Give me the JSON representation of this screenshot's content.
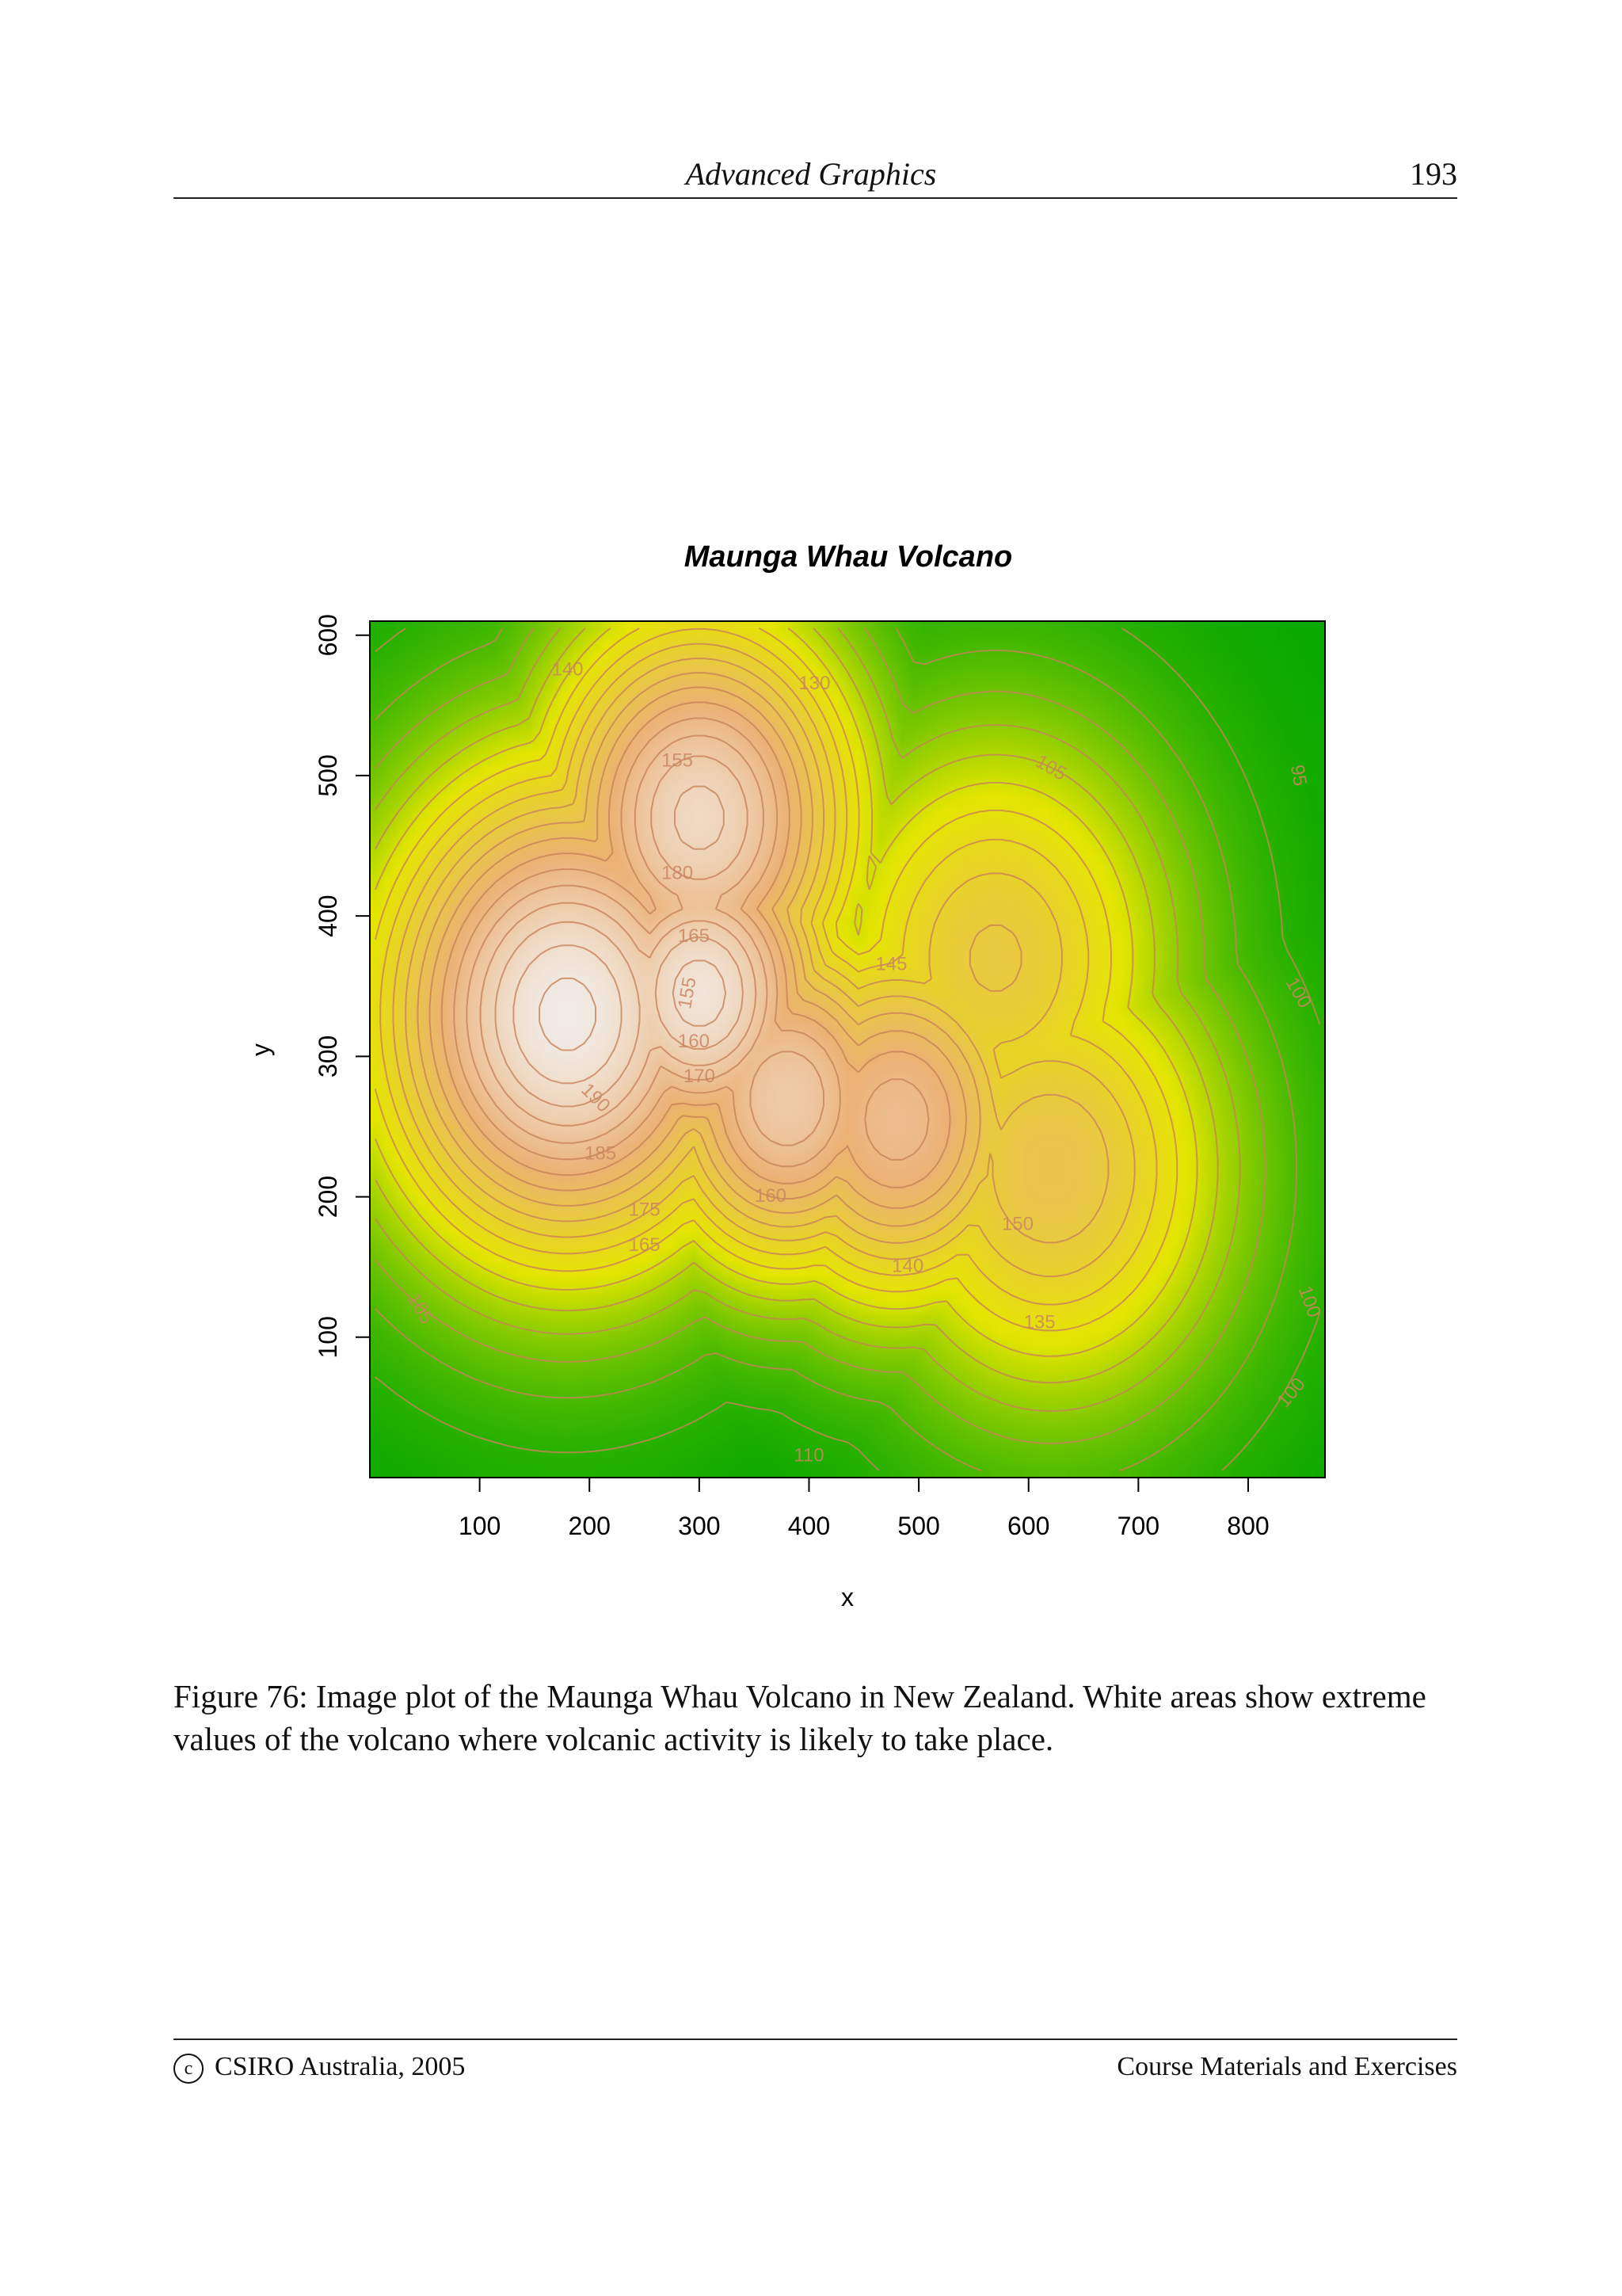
{
  "header": {
    "title": "Advanced Graphics",
    "page_number": "193"
  },
  "chart_data": {
    "type": "heatmap",
    "title": "Maunga Whau Volcano",
    "xlabel": "x",
    "ylabel": "y",
    "xlim": [
      0,
      870
    ],
    "ylim": [
      0,
      610
    ],
    "x_ticks": [
      "100",
      "200",
      "300",
      "400",
      "500",
      "600",
      "700",
      "800"
    ],
    "y_ticks": [
      "100",
      "200",
      "300",
      "400",
      "500",
      "600"
    ],
    "colormap": [
      "#00a600",
      "#e6e600",
      "#ecb176",
      "#f2f2f2"
    ],
    "value_range": [
      94,
      195
    ],
    "peaks": [
      {
        "x": 180,
        "y": 330,
        "value": 192,
        "spread": 95
      },
      {
        "x": 300,
        "y": 345,
        "value": 188,
        "spread": 70
      },
      {
        "x": 300,
        "y": 470,
        "value": 182,
        "spread": 80
      },
      {
        "x": 380,
        "y": 270,
        "value": 175,
        "spread": 70
      },
      {
        "x": 480,
        "y": 255,
        "value": 168,
        "spread": 75
      },
      {
        "x": 620,
        "y": 220,
        "value": 150,
        "spread": 90
      },
      {
        "x": 570,
        "y": 370,
        "value": 146,
        "spread": 90
      }
    ],
    "base_value": 95,
    "contour_labels": [
      {
        "text": "190",
        "x": 205,
        "y": 270,
        "rot": 45
      },
      {
        "text": "185",
        "x": 210,
        "y": 230,
        "rot": 0
      },
      {
        "text": "180",
        "x": 280,
        "y": 430,
        "rot": 0
      },
      {
        "text": "175",
        "x": 250,
        "y": 190,
        "rot": 0
      },
      {
        "text": "165",
        "x": 250,
        "y": 165,
        "rot": 0
      },
      {
        "text": "165",
        "x": 295,
        "y": 385,
        "rot": 0
      },
      {
        "text": "160",
        "x": 295,
        "y": 310,
        "rot": 0
      },
      {
        "text": "155",
        "x": 290,
        "y": 345,
        "rot": -80
      },
      {
        "text": "170",
        "x": 300,
        "y": 285,
        "rot": 0
      },
      {
        "text": "160",
        "x": 365,
        "y": 200,
        "rot": 0
      },
      {
        "text": "155",
        "x": 280,
        "y": 510,
        "rot": 0
      },
      {
        "text": "150",
        "x": 590,
        "y": 180,
        "rot": 0
      },
      {
        "text": "145",
        "x": 475,
        "y": 365,
        "rot": 0
      },
      {
        "text": "140",
        "x": 180,
        "y": 575,
        "rot": 0
      },
      {
        "text": "140",
        "x": 490,
        "y": 150,
        "rot": 0
      },
      {
        "text": "135",
        "x": 610,
        "y": 110,
        "rot": 0
      },
      {
        "text": "130",
        "x": 405,
        "y": 565,
        "rot": 0
      },
      {
        "text": "110",
        "x": 400,
        "y": 15,
        "rot": 0
      },
      {
        "text": "105",
        "x": 620,
        "y": 505,
        "rot": 30
      },
      {
        "text": "105",
        "x": 45,
        "y": 120,
        "rot": 60
      },
      {
        "text": "100",
        "x": 845,
        "y": 345,
        "rot": 60
      },
      {
        "text": "100",
        "x": 855,
        "y": 125,
        "rot": 70
      },
      {
        "text": "100",
        "x": 840,
        "y": 60,
        "rot": -50
      },
      {
        "text": "95",
        "x": 845,
        "y": 500,
        "rot": 80
      }
    ]
  },
  "caption": "Figure 76: Image plot of the Maunga Whau Volcano in New Zealand. White areas show extreme values of the volcano where volcanic activity is likely to take place.",
  "footer": {
    "left": "CSIRO Australia, 2005",
    "copyright_symbol": "c",
    "right": "Course Materials and Exercises"
  }
}
